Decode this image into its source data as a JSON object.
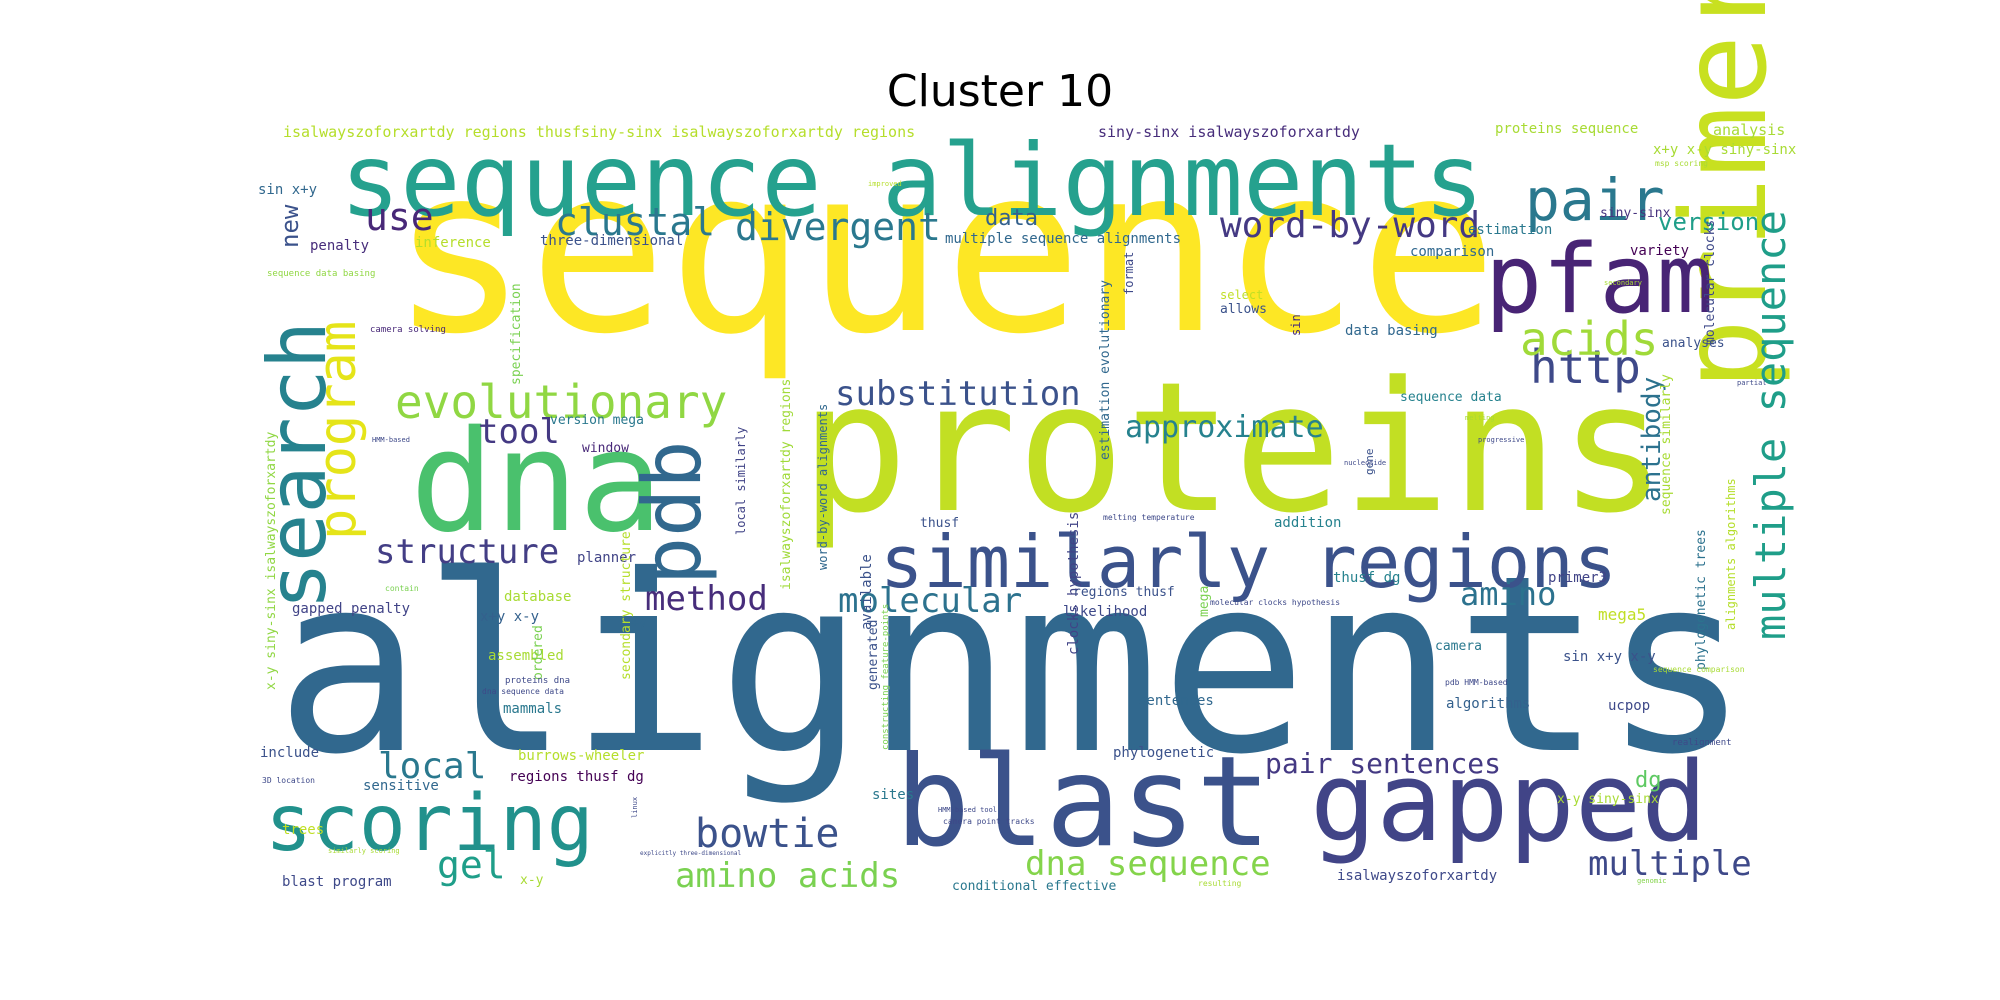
{
  "title": "Cluster 10",
  "palette": {
    "yellow": "#fde725",
    "lime": "#b5de2b",
    "green": "#6ece58",
    "teal_green": "#35b779",
    "aqua": "#1f9e89",
    "teal": "#26828e",
    "blue": "#31688e",
    "indigo": "#3e4989",
    "purple": "#482878",
    "dark": "#440154"
  },
  "words": [
    {
      "text": "sequence",
      "color": "#fde725"
    },
    {
      "text": "alignments",
      "color": "#31688e"
    },
    {
      "text": "proteins",
      "color": "#c2df23"
    },
    {
      "text": "sequence alignments",
      "color": "#25a18e"
    },
    {
      "text": "dna",
      "color": "#4ac16d"
    },
    {
      "text": "blast",
      "color": "#3b528b"
    },
    {
      "text": "gapped",
      "color": "#414487"
    },
    {
      "text": "primer",
      "color": "#c8e020"
    },
    {
      "text": "pfam",
      "color": "#482475"
    },
    {
      "text": "search",
      "color": "#26828e"
    },
    {
      "text": "scoring",
      "color": "#21918c"
    },
    {
      "text": "similarly regions",
      "color": "#3b528b"
    },
    {
      "text": "pdb",
      "color": "#31688e"
    },
    {
      "text": "program",
      "color": "#e5e419"
    },
    {
      "text": "evolutionary",
      "color": "#90d743"
    },
    {
      "text": "pair",
      "color": "#2a788e"
    },
    {
      "text": "multiple sequence",
      "color": "#1f9e89"
    },
    {
      "text": "http",
      "color": "#3e4989"
    },
    {
      "text": "acids",
      "color": "#a0da39"
    },
    {
      "text": "clustal",
      "color": "#2a788e"
    },
    {
      "text": "divergent",
      "color": "#2a788e"
    },
    {
      "text": "word-by-word",
      "color": "#443983"
    },
    {
      "text": "use",
      "color": "#482878"
    },
    {
      "text": "substitution",
      "color": "#3b528b"
    },
    {
      "text": "approximate",
      "color": "#26828e"
    },
    {
      "text": "structure",
      "color": "#433e85"
    },
    {
      "text": "method",
      "color": "#472d7b"
    },
    {
      "text": "molecular",
      "color": "#2c728e"
    },
    {
      "text": "amino",
      "color": "#2c728e"
    },
    {
      "text": "tool",
      "color": "#443983"
    },
    {
      "text": "local",
      "color": "#2a788e"
    },
    {
      "text": "gel",
      "color": "#1f9e89"
    },
    {
      "text": "bowtie",
      "color": "#3b528b"
    },
    {
      "text": "amino acids",
      "color": "#7ad151"
    },
    {
      "text": "dna sequence",
      "color": "#84d44b"
    },
    {
      "text": "pair sentences",
      "color": "#443983"
    },
    {
      "text": "multiple",
      "color": "#3e4989"
    },
    {
      "text": "antibody",
      "color": "#2c728e"
    },
    {
      "text": "version",
      "color": "#1f9e89"
    },
    {
      "text": "data",
      "color": "#34618d"
    },
    {
      "text": "new",
      "color": "#3b528b"
    },
    {
      "text": "dg",
      "color": "#5ec962"
    },
    {
      "text": "mega5",
      "color": "#c0df25"
    },
    {
      "text": "isalwayszoforxartdy regions thusfsiny-sinx isalwayszoforxartdy regions",
      "color": "#b5de2b"
    },
    {
      "text": "siny-sinx isalwayszoforxartdy",
      "color": "#472d7b"
    },
    {
      "text": "proteins sequence",
      "color": "#a8db34"
    },
    {
      "text": "analysis",
      "color": "#a8db34"
    },
    {
      "text": "x+y x-y siny-sinx",
      "color": "#a8db34"
    },
    {
      "text": "sin x+y",
      "color": "#31688e"
    },
    {
      "text": "penalty",
      "color": "#472d7b"
    },
    {
      "text": "inference",
      "color": "#b5de2b"
    },
    {
      "text": "three-dimensional",
      "color": "#3b528b"
    },
    {
      "text": "multiple sequence alignments",
      "color": "#31688e"
    },
    {
      "text": "comparison",
      "color": "#31688e"
    },
    {
      "text": "estimation",
      "color": "#2a788e"
    },
    {
      "text": "siny-sinx",
      "color": "#46327e"
    },
    {
      "text": "variety",
      "color": "#440154"
    },
    {
      "text": "molecular clocks",
      "color": "#3e4989"
    },
    {
      "text": "data basing",
      "color": "#31688e"
    },
    {
      "text": "analyses",
      "color": "#3b528b"
    },
    {
      "text": "sequence similarly",
      "color": "#a8db34"
    },
    {
      "text": "sequence data",
      "color": "#26828e"
    },
    {
      "text": "estimation evolutionary",
      "color": "#31688e"
    },
    {
      "text": "specification",
      "color": "#7ad151"
    },
    {
      "text": "allows",
      "color": "#3b528b"
    },
    {
      "text": "select",
      "color": "#c0df25"
    },
    {
      "text": "sin",
      "color": "#472d7b"
    },
    {
      "text": "format",
      "color": "#3e4989"
    },
    {
      "text": "version mega",
      "color": "#2a788e"
    },
    {
      "text": "window",
      "color": "#482878"
    },
    {
      "text": "local similarly",
      "color": "#414487"
    },
    {
      "text": "isalwayszoforxartdy regions",
      "color": "#a0da39"
    },
    {
      "text": "thusf",
      "color": "#3b528b"
    },
    {
      "text": "available",
      "color": "#3b528b"
    },
    {
      "text": "addition",
      "color": "#26828e"
    },
    {
      "text": "thusf dg",
      "color": "#26828e"
    },
    {
      "text": "gene",
      "color": "#3b528b"
    },
    {
      "text": "primer3",
      "color": "#414487"
    },
    {
      "text": "regions thusf",
      "color": "#3b528b"
    },
    {
      "text": "likelihood",
      "color": "#3e4989"
    },
    {
      "text": "mega",
      "color": "#7ad151"
    },
    {
      "text": "planner",
      "color": "#414487"
    },
    {
      "text": "database",
      "color": "#a8db34"
    },
    {
      "text": "x+y x-y",
      "color": "#34618d"
    },
    {
      "text": "x+y",
      "color": "#31688e"
    },
    {
      "text": "gapped penalty",
      "color": "#414487"
    },
    {
      "text": "assembled",
      "color": "#a8db34"
    },
    {
      "text": "x-y siny-sinx isalwayszoforxartdy",
      "color": "#90d743"
    },
    {
      "text": "word-by-word alignments",
      "color": "#31688e"
    },
    {
      "text": "camera",
      "color": "#2a788e"
    },
    {
      "text": "sin x+y x-y",
      "color": "#3b528b"
    },
    {
      "text": "ucpop",
      "color": "#3e4989"
    },
    {
      "text": "phylogenetic trees",
      "color": "#2c728e"
    },
    {
      "text": "alignments algorithms",
      "color": "#b5de2b"
    },
    {
      "text": "mammals",
      "color": "#2a788e"
    },
    {
      "text": "ordered",
      "color": "#7ad151"
    },
    {
      "text": "secondary structure",
      "color": "#b5de2b"
    },
    {
      "text": "generated",
      "color": "#3b528b"
    },
    {
      "text": "clocks hypothesis",
      "color": "#414487"
    },
    {
      "text": "sentences",
      "color": "#31688e"
    },
    {
      "text": "algorithms",
      "color": "#34618d"
    },
    {
      "text": "include",
      "color": "#3b528b"
    },
    {
      "text": "burrows-wheeler",
      "color": "#b5de2b"
    },
    {
      "text": "sensitive",
      "color": "#31688e"
    },
    {
      "text": "regions thusf dg",
      "color": "#440154"
    },
    {
      "text": "sites",
      "color": "#2a788e"
    },
    {
      "text": "phylogenetic",
      "color": "#3b528b"
    },
    {
      "text": "x-y siny-sinx",
      "color": "#a8db34"
    },
    {
      "text": "trees",
      "color": "#c0df25"
    },
    {
      "text": "blast program",
      "color": "#3e4989"
    },
    {
      "text": "x-y",
      "color": "#a8db34"
    },
    {
      "text": "conditional effective",
      "color": "#2a788e"
    },
    {
      "text": "isalwayszoforxartdy",
      "color": "#3e4989"
    },
    {
      "text": "proteins dna",
      "color": "#3e4989"
    },
    {
      "text": "dna sequence data",
      "color": "#3e4989"
    },
    {
      "text": "camera solving",
      "color": "#482878"
    },
    {
      "text": "sequence data basing",
      "color": "#90d743"
    },
    {
      "text": "HMM-based",
      "color": "#3e4989"
    },
    {
      "text": "improved",
      "color": "#b5de2b"
    },
    {
      "text": "msp scoring",
      "color": "#a8db34"
    },
    {
      "text": "constructing feature-points",
      "color": "#7ad151"
    },
    {
      "text": "camera point tracks",
      "color": "#3e4989"
    },
    {
      "text": "HMM-based tool",
      "color": "#3e4989"
    },
    {
      "text": "resulting",
      "color": "#a8db34"
    },
    {
      "text": "genomic",
      "color": "#84d44b"
    },
    {
      "text": "realignment",
      "color": "#3e4989"
    },
    {
      "text": "sequence comparison",
      "color": "#a8db34"
    },
    {
      "text": "pdb HMM-based",
      "color": "#3e4989"
    },
    {
      "text": "molecular clocks hypothesis",
      "color": "#3e4989"
    },
    {
      "text": "melting temperature",
      "color": "#3e4989"
    },
    {
      "text": "nucleotide",
      "color": "#3e4989"
    },
    {
      "text": "partial",
      "color": "#3e4989"
    },
    {
      "text": "progressive",
      "color": "#3e4989"
    },
    {
      "text": "melting",
      "color": "#a8db34"
    },
    {
      "text": "secondary",
      "color": "#a8db34"
    },
    {
      "text": "contain",
      "color": "#7ad151"
    },
    {
      "text": "linux",
      "color": "#3e4989"
    },
    {
      "text": "similarly scoring",
      "color": "#a8db34"
    },
    {
      "text": "explicitly three-dimensional",
      "color": "#3e4989"
    },
    {
      "text": "3D location",
      "color": "#3e4989"
    }
  ]
}
